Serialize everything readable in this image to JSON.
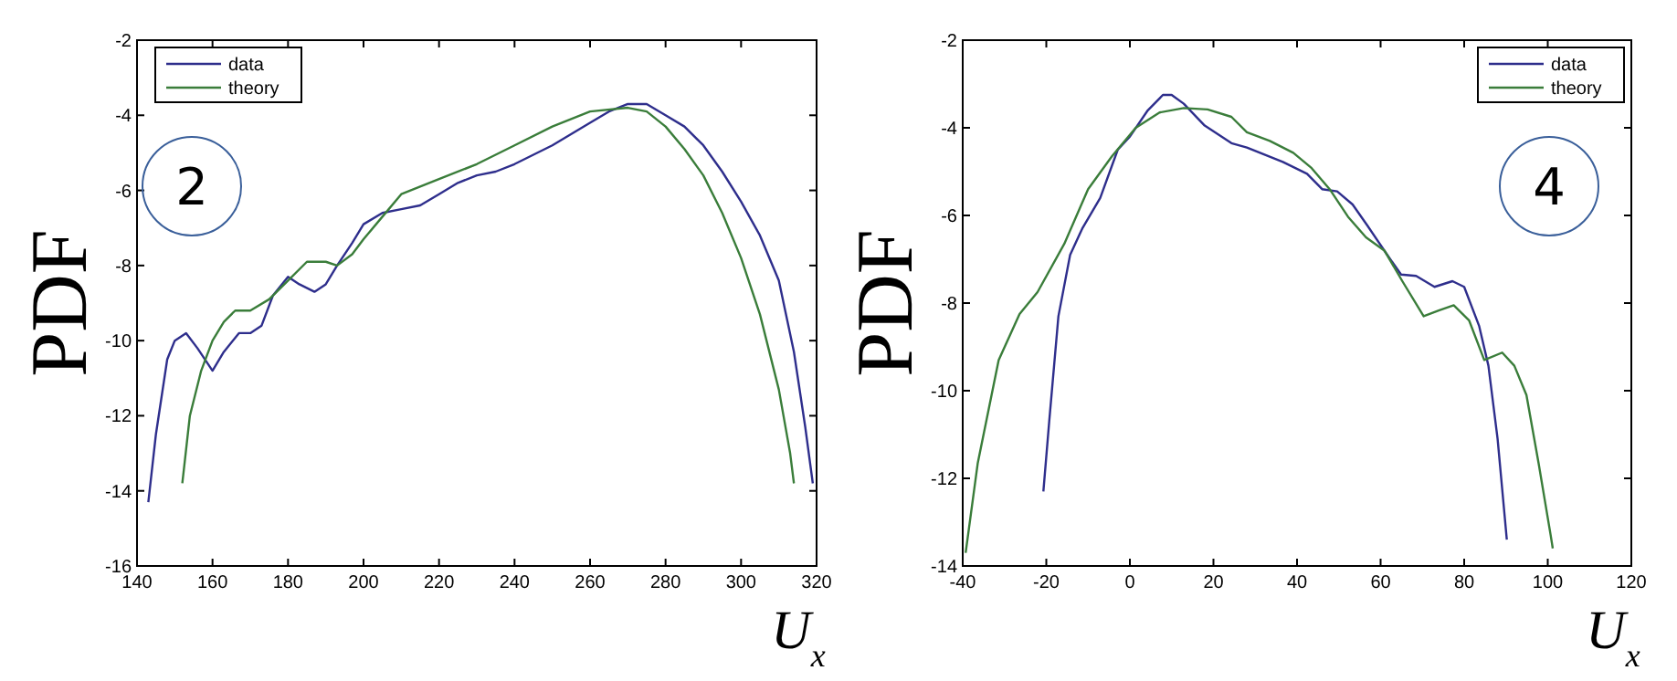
{
  "chart_data": [
    {
      "type": "line",
      "xlabel": "U$_{x}$",
      "ylabel": "PDF",
      "annotations": [
        "2"
      ],
      "xlim": [
        140,
        320
      ],
      "ylim": [
        -16,
        -2
      ],
      "xticks": [
        140,
        160,
        180,
        200,
        220,
        240,
        260,
        280,
        300,
        320
      ],
      "yticks": [
        -16,
        -14,
        -12,
        -10,
        -8,
        -6,
        -4,
        -2
      ],
      "legend": "top left",
      "grid": false,
      "series": [
        {
          "name": "data",
          "color": "#2e2e8c",
          "x": [
            143,
            145,
            148,
            150,
            153,
            156,
            160,
            163,
            167,
            170,
            173,
            176,
            180,
            183,
            187,
            190,
            193,
            197,
            200,
            205,
            210,
            215,
            220,
            225,
            230,
            235,
            240,
            250,
            260,
            265,
            270,
            275,
            280,
            285,
            290,
            295,
            300,
            305,
            310,
            314,
            317,
            319
          ],
          "values": [
            -14.3,
            -12.5,
            -10.5,
            -10,
            -9.8,
            -10.2,
            -10.8,
            -10.3,
            -9.8,
            -9.8,
            -9.6,
            -8.8,
            -8.3,
            -8.5,
            -8.7,
            -8.5,
            -8,
            -7.4,
            -6.9,
            -6.6,
            -6.5,
            -6.4,
            -6.1,
            -5.8,
            -5.6,
            -5.5,
            -5.3,
            -4.8,
            -4.2,
            -3.9,
            -3.7,
            -3.7,
            -4,
            -4.3,
            -4.8,
            -5.5,
            -6.3,
            -7.2,
            -8.4,
            -10.3,
            -12.3,
            -13.8
          ]
        },
        {
          "name": "theory",
          "color": "#3a7d3a",
          "x": [
            152,
            154,
            157,
            160,
            163,
            166,
            170,
            175,
            180,
            185,
            190,
            193,
            197,
            200,
            205,
            210,
            215,
            220,
            230,
            240,
            250,
            260,
            270,
            275,
            280,
            285,
            290,
            295,
            300,
            305,
            310,
            313,
            314
          ],
          "values": [
            -13.8,
            -12,
            -10.8,
            -10,
            -9.5,
            -9.2,
            -9.2,
            -8.9,
            -8.4,
            -7.9,
            -7.9,
            -8,
            -7.7,
            -7.3,
            -6.7,
            -6.1,
            -5.9,
            -5.7,
            -5.3,
            -4.8,
            -4.3,
            -3.9,
            -3.8,
            -3.9,
            -4.3,
            -4.9,
            -5.6,
            -6.6,
            -7.8,
            -9.3,
            -11.3,
            -13,
            -13.8
          ]
        }
      ]
    },
    {
      "type": "line",
      "xlabel": "U$_{x}$",
      "ylabel": "PDF",
      "annotations": [
        "4"
      ],
      "xlim": [
        -40,
        120
      ],
      "ylim": [
        -14,
        -2
      ],
      "xticks": [
        -40,
        -20,
        0,
        20,
        40,
        60,
        80,
        100,
        120
      ],
      "yticks": [
        -14,
        -12,
        -10,
        -8,
        -6,
        -4,
        -2
      ],
      "legend": "top right",
      "grid": false,
      "series": [
        {
          "name": "data",
          "color": "#2e2e8c",
          "x": [
            -20.7,
            -19.3,
            -17.1,
            -14.3,
            -11.4,
            -7.1,
            -2.9,
            0,
            4.3,
            7.9,
            10,
            12.9,
            17.9,
            24.3,
            28,
            36.6,
            42.4,
            46,
            49.6,
            53.3,
            56.9,
            61.3,
            64.9,
            68.5,
            72.9,
            77.2,
            80,
            83.6,
            85.8,
            88,
            90.2
          ],
          "values": [
            -12.3,
            -10.7,
            -8.3,
            -6.9,
            -6.3,
            -5.6,
            -4.5,
            -4.2,
            -3.6,
            -3.25,
            -3.25,
            -3.45,
            -3.95,
            -4.35,
            -4.45,
            -4.78,
            -5.05,
            -5.4,
            -5.45,
            -5.75,
            -6.24,
            -6.86,
            -7.35,
            -7.38,
            -7.63,
            -7.5,
            -7.63,
            -8.53,
            -9.43,
            -11.1,
            -13.4
          ]
        },
        {
          "name": "theory",
          "color": "#3a7d3a",
          "x": [
            -39.3,
            -36.4,
            -31.4,
            -26.4,
            -22.1,
            -15.7,
            -10,
            -4.3,
            1.4,
            7.1,
            12.9,
            18.6,
            24.3,
            28,
            33.5,
            39.1,
            43.5,
            47.8,
            52.2,
            56.5,
            60.9,
            65.2,
            70.3,
            73.9,
            77.5,
            81.2,
            84.8,
            89.1,
            92,
            94.9,
            97.8,
            100.7,
            101.2
          ],
          "values": [
            -13.7,
            -11.65,
            -9.3,
            -8.25,
            -7.75,
            -6.65,
            -5.4,
            -4.65,
            -4,
            -3.65,
            -3.55,
            -3.58,
            -3.75,
            -4.1,
            -4.3,
            -4.57,
            -4.92,
            -5.4,
            -6.03,
            -6.5,
            -6.8,
            -7.5,
            -8.3,
            -8.17,
            -8.05,
            -8.4,
            -9.3,
            -9.13,
            -9.43,
            -10.1,
            -11.65,
            -13.3,
            -13.6
          ]
        }
      ]
    }
  ]
}
